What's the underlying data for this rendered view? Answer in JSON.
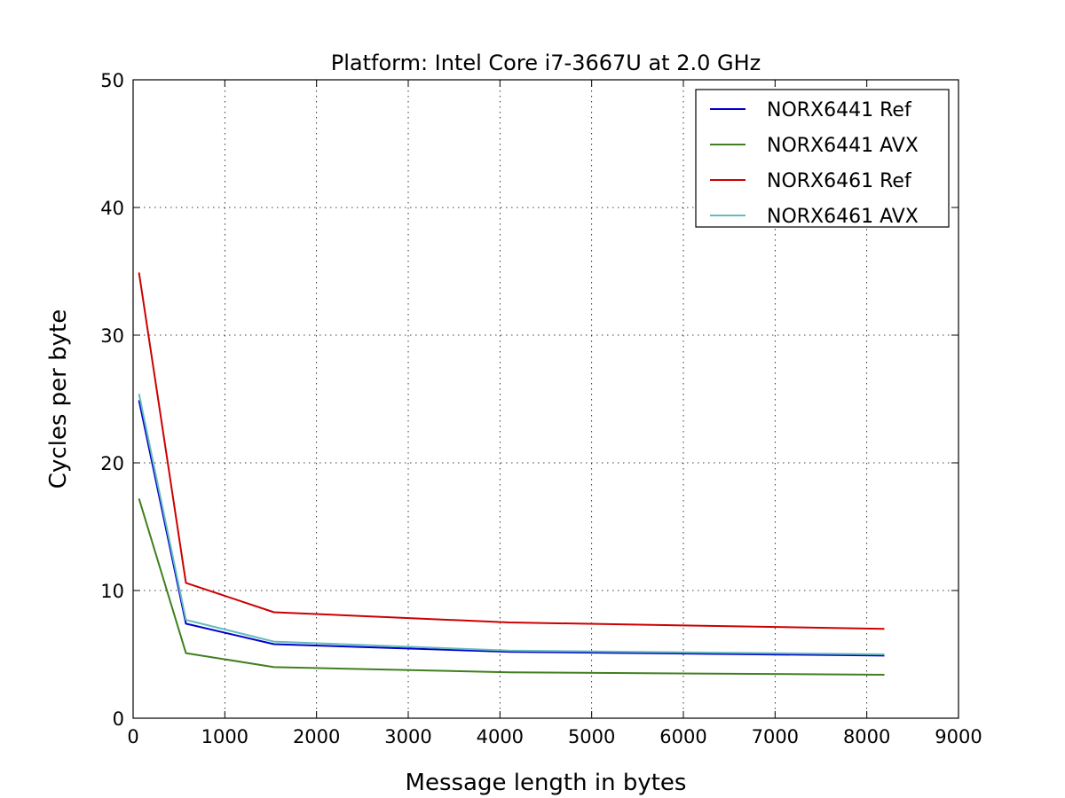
{
  "chart_data": {
    "type": "line",
    "title": "Platform: Intel Core i7-3667U at 2.0 GHz",
    "xlabel": "Message length in bytes",
    "ylabel": "Cycles per byte",
    "xlim": [
      0,
      9000
    ],
    "ylim": [
      0,
      50
    ],
    "xticks": [
      0,
      1000,
      2000,
      3000,
      4000,
      5000,
      6000,
      7000,
      8000,
      9000
    ],
    "yticks": [
      0,
      10,
      20,
      30,
      40,
      50
    ],
    "grid": true,
    "legend_position": "top-right",
    "x": [
      64,
      576,
      1536,
      4096,
      8192
    ],
    "series": [
      {
        "name": "NORX6441 Ref",
        "color": "#0000cc",
        "values": [
          24.9,
          7.4,
          5.8,
          5.2,
          4.9
        ]
      },
      {
        "name": "NORX6441 AVX",
        "color": "#3f7f1f",
        "values": [
          17.2,
          5.1,
          4.0,
          3.6,
          3.4
        ]
      },
      {
        "name": "NORX6461 Ref",
        "color": "#cc0000",
        "values": [
          34.9,
          10.6,
          8.3,
          7.5,
          7.0
        ]
      },
      {
        "name": "NORX6461 AVX",
        "color": "#66bbbb",
        "values": [
          25.4,
          7.7,
          6.0,
          5.3,
          5.0
        ]
      }
    ]
  }
}
